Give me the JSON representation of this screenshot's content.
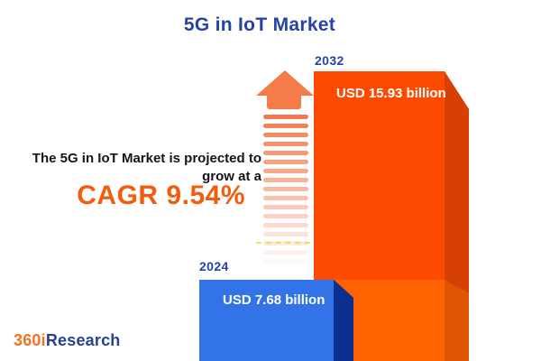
{
  "title": "5G in IoT Market",
  "projection": {
    "line1": "The 5G in IoT Market is projected to",
    "line2": "grow at a",
    "cagr": "CAGR 9.54%"
  },
  "bars": {
    "bar2024": {
      "year": "2024",
      "value_label": "USD 7.68 billion"
    },
    "bar2032": {
      "year": "2032",
      "value_label": "USD 15.93 billion"
    }
  },
  "logo": {
    "prefix": "360i",
    "suffix": "Research"
  },
  "arrow": {
    "stripe_count": 17
  },
  "colors": {
    "title_blue": "#2543A4",
    "cagr_orange": "#F25C0A",
    "bar2024_front": "#3274E8",
    "bar2024_side": "#0A2F8E",
    "bar2032_front": "#FC4A00",
    "bar2032_side": "#D74004",
    "bar2032_lower_front": "#FF6200",
    "bar2032_lower_side": "#E05502",
    "arrow_orange": "#F57B49",
    "logo_orange": "#F4731F",
    "logo_blue": "#27418F",
    "value_text": "#FFFFFF",
    "body_text": "#151515"
  },
  "chart_data": {
    "type": "bar",
    "categories": [
      "2024",
      "2032"
    ],
    "values": [
      7.68,
      15.93
    ],
    "unit": "USD billion",
    "value_labels": [
      "USD 7.68 billion",
      "USD 15.93 billion"
    ],
    "title": "5G in IoT Market",
    "annotation": "The 5G in IoT Market is projected to grow at a CAGR 9.54%",
    "cagr_percent": 9.54,
    "grid": false,
    "legend": "none"
  }
}
